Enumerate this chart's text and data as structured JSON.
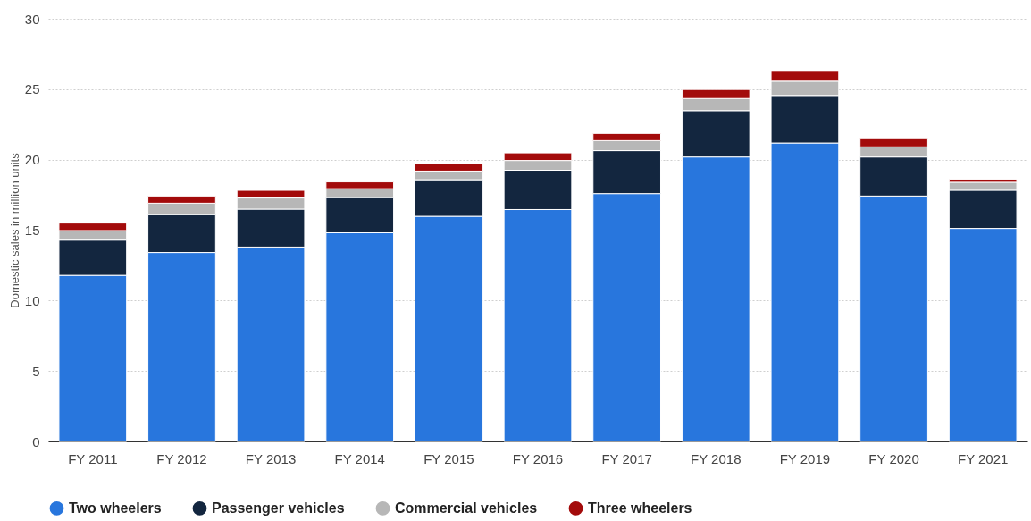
{
  "chart_data": {
    "type": "bar",
    "stacked": true,
    "ylabel": "Domestic sales in million units",
    "categories": [
      "FY 2011",
      "FY 2012",
      "FY 2013",
      "FY 2014",
      "FY 2015",
      "FY 2016",
      "FY 2017",
      "FY 2018",
      "FY 2019",
      "FY 2020",
      "FY 2021"
    ],
    "series": [
      {
        "name": "Two wheelers",
        "color": "#2876dd",
        "values": [
          11.79,
          13.41,
          13.8,
          14.81,
          15.98,
          16.46,
          17.59,
          20.19,
          21.18,
          17.42,
          15.12
        ]
      },
      {
        "name": "Passenger vehicles",
        "color": "#13263f",
        "values": [
          2.5,
          2.69,
          2.69,
          2.5,
          2.6,
          2.79,
          3.05,
          3.29,
          3.38,
          2.77,
          2.71
        ]
      },
      {
        "name": "Commercial vehicles",
        "color": "#b7b7b7",
        "values": [
          0.68,
          0.81,
          0.79,
          0.63,
          0.61,
          0.69,
          0.71,
          0.86,
          1.01,
          0.72,
          0.57
        ]
      },
      {
        "name": "Three wheelers",
        "color": "#a30b0b",
        "values": [
          0.53,
          0.51,
          0.54,
          0.48,
          0.53,
          0.54,
          0.51,
          0.64,
          0.7,
          0.64,
          0.22
        ]
      }
    ],
    "ylim": [
      0,
      30
    ],
    "yticks": [
      0,
      5,
      10,
      15,
      20,
      25,
      30
    ],
    "grid": "y",
    "legend": "bottom"
  }
}
